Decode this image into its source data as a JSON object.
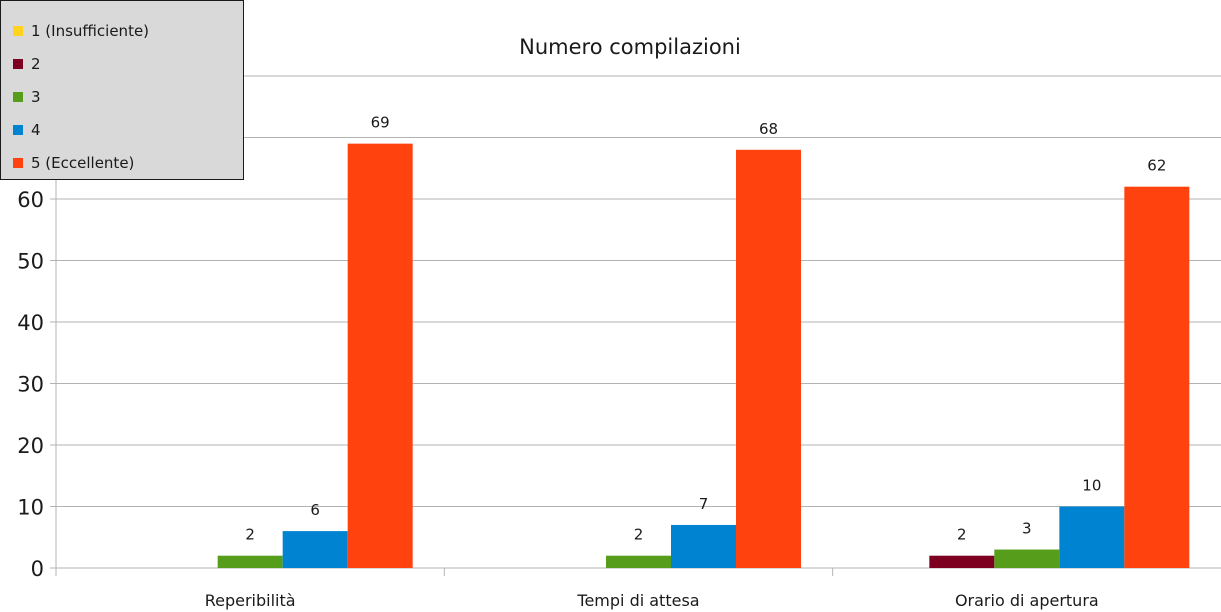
{
  "chart_data": {
    "type": "bar",
    "title": "Numero compilazioni",
    "categories": [
      "Reperibilità",
      "Tempi di attesa",
      "Orario di apertura"
    ],
    "series": [
      {
        "name": "1 (Insufficiente)",
        "color": "#ffd320",
        "values": [
          0,
          0,
          0
        ]
      },
      {
        "name": "2",
        "color": "#7e0021",
        "values": [
          0,
          0,
          2
        ]
      },
      {
        "name": "3",
        "color": "#579d1c",
        "values": [
          2,
          2,
          3
        ]
      },
      {
        "name": "4",
        "color": "#0084d1",
        "values": [
          6,
          7,
          10
        ]
      },
      {
        "name": "5 (Eccellente)",
        "color": "#ff420e",
        "values": [
          69,
          68,
          62
        ]
      }
    ],
    "ylim": [
      0,
      80
    ],
    "yticks": [
      0,
      10,
      20,
      30,
      40,
      50,
      60,
      70,
      80
    ],
    "grid": true,
    "legend": "top-left"
  }
}
